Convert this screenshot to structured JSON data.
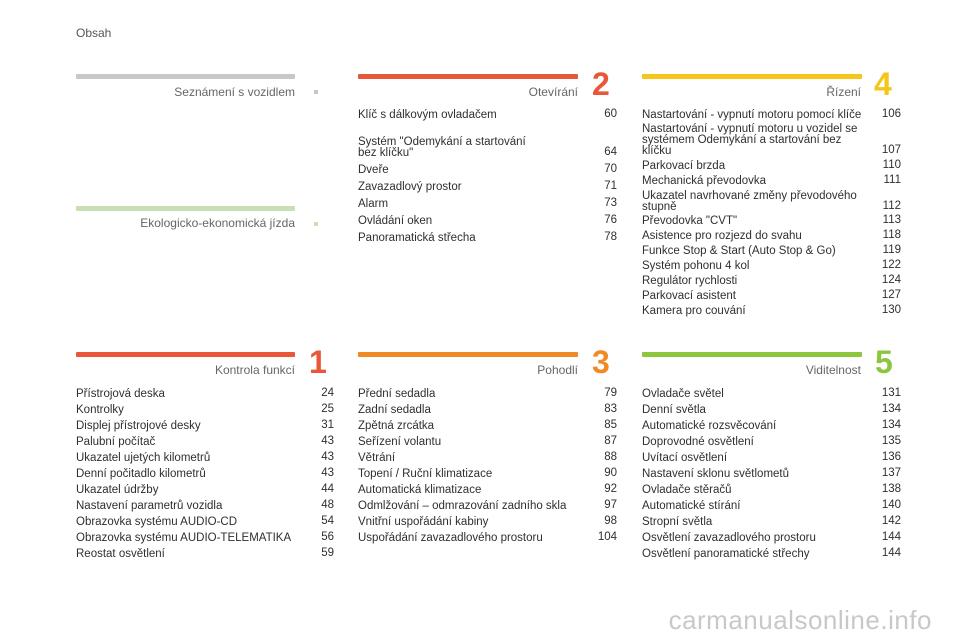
{
  "header": {
    "title": "Obsah"
  },
  "sections": {
    "seznameni": {
      "title": "Seznámení s vozidlem",
      "color": "#c8c8c8"
    },
    "ekologicko": {
      "title": "Ekologicko-ekonomická jízda",
      "color": "#c6e0b4"
    },
    "otevirani": {
      "number": "2",
      "title": "Otevírání",
      "color": "#e8573a",
      "entries": [
        {
          "text": "Klíč s dálkovým ovladačem",
          "page": "60"
        },
        {
          "text": "Systém \"Odemykání a startování",
          "page": ""
        },
        {
          "text": "bez klíčku\"",
          "page": "64"
        },
        {
          "text": "Dveře",
          "page": "70"
        },
        {
          "text": "Zavazadlový prostor",
          "page": "71"
        },
        {
          "text": "Alarm",
          "page": "73"
        },
        {
          "text": "Ovládání oken",
          "page": "76"
        },
        {
          "text": "Panoramatická střecha",
          "page": "78"
        }
      ]
    },
    "rizeni": {
      "number": "4",
      "title": "Řízení",
      "color": "#f5c518",
      "entries": [
        {
          "text": "Nastartování - vypnutí motoru pomocí klíče",
          "page": "106"
        },
        {
          "text": "Nastartování - vypnutí motoru u vozidel se systémem Odemykání a startování bez klíčku",
          "page": "107"
        },
        {
          "text": "Parkovací brzda",
          "page": "110"
        },
        {
          "text": "Mechanická převodovka",
          "page": "111"
        },
        {
          "text": "Ukazatel navrhované změny převodového stupně",
          "page": "112"
        },
        {
          "text": "Převodovka \"CVT\"",
          "page": "113"
        },
        {
          "text": "Asistence pro rozjezd do svahu",
          "page": "118"
        },
        {
          "text": "Funkce Stop & Start (Auto Stop & Go)",
          "page": "119"
        },
        {
          "text": "Systém pohonu 4 kol",
          "page": "122"
        },
        {
          "text": "Regulátor rychlosti",
          "page": "124"
        },
        {
          "text": "Parkovací asistent",
          "page": "127"
        },
        {
          "text": "Kamera pro couvání",
          "page": "130"
        }
      ]
    },
    "kontrola": {
      "number": "1",
      "title": "Kontrola funkcí",
      "color": "#e8573a",
      "entries": [
        {
          "text": "Přístrojová deska",
          "page": "24"
        },
        {
          "text": "Kontrolky",
          "page": "25"
        },
        {
          "text": "Displej přístrojové desky",
          "page": "31"
        },
        {
          "text": "Palubní počítač",
          "page": "43"
        },
        {
          "text": "Ukazatel ujetých kilometrů",
          "page": "43"
        },
        {
          "text": "Denní počitadlo kilometrů",
          "page": "43"
        },
        {
          "text": "Ukazatel údržby",
          "page": "44"
        },
        {
          "text": "Nastavení parametrů vozidla",
          "page": "48"
        },
        {
          "text": "Obrazovka systému AUDIO-CD",
          "page": "54"
        },
        {
          "text": "Obrazovka systému AUDIO-TELEMATIKA",
          "page": "56"
        },
        {
          "text": "Reostat osvětlení",
          "page": "59"
        }
      ]
    },
    "pohodli": {
      "number": "3",
      "title": "Pohodlí",
      "color": "#f08a24",
      "entries": [
        {
          "text": "Přední sedadla",
          "page": "79"
        },
        {
          "text": "Zadní sedadla",
          "page": "83"
        },
        {
          "text": "Zpětná zrcátka",
          "page": "85"
        },
        {
          "text": "Seřízení volantu",
          "page": "87"
        },
        {
          "text": "Větrání",
          "page": "88"
        },
        {
          "text": "Topení / Ruční klimatizace",
          "page": "90"
        },
        {
          "text": "Automatická klimatizace",
          "page": "92"
        },
        {
          "text": "Odmlžování – odmrazování zadního skla",
          "page": "97"
        },
        {
          "text": "Vnitřní uspořádání kabiny",
          "page": "98"
        },
        {
          "text": "Uspořádání zavazadlového prostoru",
          "page": "104"
        }
      ]
    },
    "viditelnost": {
      "number": "5",
      "title": "Viditelnost",
      "color": "#8cc63f",
      "entries": [
        {
          "text": "Ovladače světel",
          "page": "131"
        },
        {
          "text": "Denní světla",
          "page": "134"
        },
        {
          "text": "Automatické rozsvěcování",
          "page": "134"
        },
        {
          "text": "Doprovodné osvětlení",
          "page": "135"
        },
        {
          "text": "Uvítací osvětlení",
          "page": "136"
        },
        {
          "text": "Nastavení sklonu světlometů",
          "page": "137"
        },
        {
          "text": "Ovladače stěračů",
          "page": "138"
        },
        {
          "text": "Automatické stírání",
          "page": "140"
        },
        {
          "text": "Stropní světla",
          "page": "142"
        },
        {
          "text": "Osvětlení zavazadlového prostoru",
          "page": "144"
        },
        {
          "text": "Osvětlení panoramatické střechy",
          "page": "144"
        }
      ]
    }
  },
  "watermark": "carmanualsonline.info"
}
